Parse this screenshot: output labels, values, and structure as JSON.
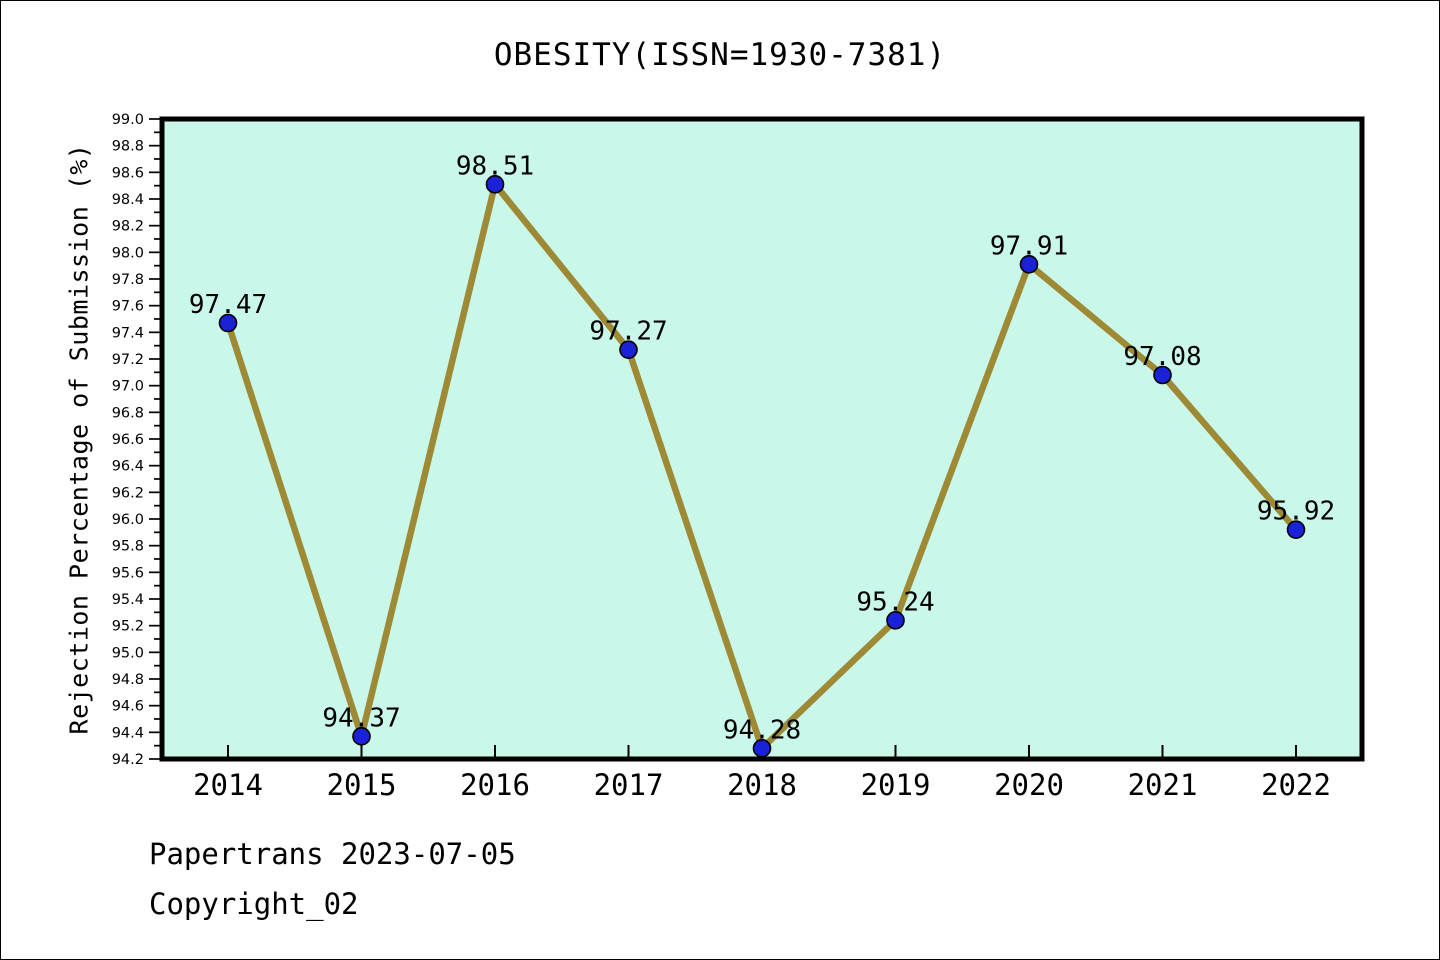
{
  "page": {
    "title": "OBESITY(ISSN=1930-7381)",
    "footer_line1": "Papertrans 2023-07-05",
    "footer_line2": "Copyright_02"
  },
  "chart_data": {
    "type": "line",
    "title": "OBESITY(ISSN=1930-7381)",
    "xlabel": "",
    "ylabel": "Rejection Percentage of Submission (%)",
    "categories": [
      "2014",
      "2015",
      "2016",
      "2017",
      "2018",
      "2019",
      "2020",
      "2021",
      "2022"
    ],
    "series": [
      {
        "name": "Rejection Percentage of Submission",
        "values": [
          97.47,
          94.37,
          98.51,
          97.27,
          94.28,
          95.24,
          97.91,
          97.08,
          95.92
        ]
      }
    ],
    "point_labels": [
      "97.47",
      "94.37",
      "98.51",
      "97.27",
      "94.28",
      "95.24",
      "97.91",
      "97.08",
      "95.92"
    ],
    "ylim": [
      94.2,
      99.0
    ],
    "y_major_step": 0.2,
    "y_minor_step": 0.1,
    "grid": false,
    "legend_position": "none",
    "colors": {
      "plot_bg": "#c9f7ea",
      "line": "#9e8935",
      "marker_fill": "#1a22d8",
      "marker_edge": "#000000",
      "frame": "#000000",
      "text": "#000000"
    }
  }
}
